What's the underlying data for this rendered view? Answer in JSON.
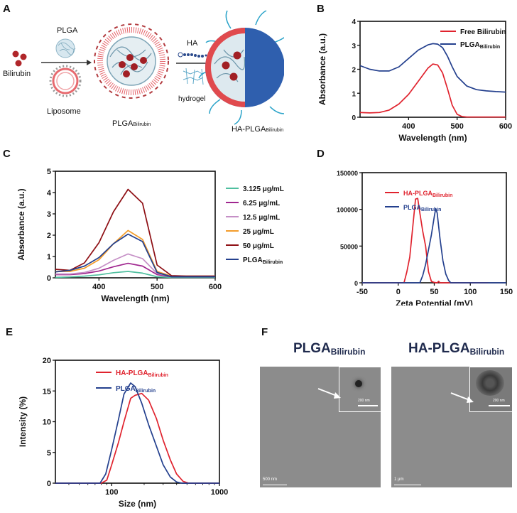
{
  "panels": {
    "A": {
      "letter": "A",
      "bilirubin_label": "Bilirubin",
      "plga_label": "PLGA",
      "liposome_label": "Liposome",
      "plga_bilirubin_label": "PLGA",
      "plga_bilirubin_sub": "Bilirubin",
      "ha_label": "HA",
      "hydrogel_label": "hydrogel",
      "ha_plga_label": "HA-PLGA",
      "ha_plga_sub": "Bilirubin"
    },
    "B": {
      "letter": "B"
    },
    "C": {
      "letter": "C"
    },
    "D": {
      "letter": "D"
    },
    "E": {
      "letter": "E"
    },
    "F": {
      "letter": "F",
      "left_title": "PLGA",
      "left_sub": "Bilirubin",
      "right_title": "HA-PLGA",
      "right_sub": "Bilirubin",
      "left_scale": "500 nm",
      "right_scale": "1 μm",
      "inset_scale": "200 nm"
    }
  },
  "chart_data": [
    {
      "id": "B",
      "type": "line",
      "xlabel": "Wavelength (nm)",
      "ylabel": "Absorbance (a.u.)",
      "xlim": [
        300,
        600
      ],
      "ylim": [
        0,
        4
      ],
      "xticks": [
        400,
        500,
        600
      ],
      "yticks": [
        0,
        1,
        2,
        3,
        4
      ],
      "legend_position": "top-right",
      "series": [
        {
          "name": "Free Bilirubin",
          "name_sub": "",
          "color": "#e0232e",
          "x": [
            300,
            320,
            340,
            360,
            380,
            400,
            420,
            440,
            450,
            460,
            470,
            480,
            490,
            500,
            510,
            520,
            540,
            560,
            580,
            600
          ],
          "y": [
            0.2,
            0.18,
            0.2,
            0.3,
            0.55,
            0.95,
            1.5,
            2.05,
            2.22,
            2.18,
            1.85,
            1.2,
            0.5,
            0.12,
            0.03,
            0.01,
            0.01,
            0.01,
            0.01,
            0.01
          ]
        },
        {
          "name": "PLGA",
          "name_sub": "Bilirubin",
          "color": "#24408e",
          "x": [
            300,
            320,
            340,
            360,
            380,
            400,
            420,
            440,
            450,
            460,
            470,
            480,
            490,
            500,
            520,
            540,
            560,
            580,
            600
          ],
          "y": [
            2.15,
            2.0,
            1.93,
            1.93,
            2.1,
            2.45,
            2.8,
            3.02,
            3.07,
            3.05,
            2.9,
            2.55,
            2.1,
            1.7,
            1.3,
            1.15,
            1.1,
            1.07,
            1.05
          ]
        }
      ]
    },
    {
      "id": "C",
      "type": "line",
      "xlabel": "Wavelength (nm)",
      "ylabel": "Absorbance (a.u.)",
      "xlim": [
        325,
        600
      ],
      "ylim": [
        0,
        5
      ],
      "xticks": [
        400,
        500,
        600
      ],
      "yticks": [
        0,
        1,
        2,
        3,
        4,
        5
      ],
      "legend_position": "right-outside",
      "series": [
        {
          "name": "3.125 μg/mL",
          "name_sub": "",
          "color": "#4fbf9f",
          "x": [
            325,
            350,
            375,
            400,
            425,
            450,
            475,
            500,
            525,
            550,
            600
          ],
          "y": [
            0.02,
            0.04,
            0.08,
            0.14,
            0.24,
            0.3,
            0.22,
            0.05,
            0.02,
            0.02,
            0.02
          ]
        },
        {
          "name": "6.25 μg/mL",
          "name_sub": "",
          "color": "#a0268f",
          "x": [
            325,
            350,
            375,
            400,
            425,
            450,
            475,
            500,
            525,
            550,
            600
          ],
          "y": [
            0.15,
            0.15,
            0.2,
            0.32,
            0.52,
            0.68,
            0.55,
            0.15,
            0.05,
            0.05,
            0.05
          ]
        },
        {
          "name": "12.5 μg/mL",
          "name_sub": "",
          "color": "#c58fc6",
          "x": [
            325,
            350,
            375,
            400,
            425,
            450,
            475,
            500,
            525,
            550,
            600
          ],
          "y": [
            0.18,
            0.18,
            0.25,
            0.45,
            0.82,
            1.12,
            0.9,
            0.2,
            0.08,
            0.08,
            0.08
          ]
        },
        {
          "name": "25 μg/mL",
          "name_sub": "",
          "color": "#f39c2a",
          "x": [
            325,
            350,
            375,
            400,
            425,
            450,
            475,
            500,
            525,
            550,
            600
          ],
          "y": [
            0.3,
            0.3,
            0.45,
            0.85,
            1.6,
            2.22,
            1.8,
            0.3,
            0.08,
            0.08,
            0.08
          ]
        },
        {
          "name": "50 μg/mL",
          "name_sub": "",
          "color": "#8e0f14",
          "x": [
            325,
            350,
            375,
            400,
            425,
            450,
            475,
            500,
            525,
            550,
            600
          ],
          "y": [
            0.4,
            0.35,
            0.7,
            1.65,
            3.1,
            4.15,
            3.5,
            0.6,
            0.1,
            0.08,
            0.08
          ]
        },
        {
          "name": "PLGA",
          "name_sub": "Bilirubin",
          "color": "#24408e",
          "x": [
            325,
            350,
            375,
            400,
            425,
            450,
            475,
            500,
            525,
            550,
            600
          ],
          "y": [
            0.28,
            0.35,
            0.55,
            0.95,
            1.6,
            2.05,
            1.7,
            0.25,
            0.05,
            0.05,
            0.05
          ]
        }
      ]
    },
    {
      "id": "D",
      "type": "line",
      "xlabel": "Zeta Potential (mV)",
      "ylabel": "",
      "xlim": [
        -50,
        150
      ],
      "ylim": [
        0,
        150000
      ],
      "xticks": [
        -50,
        0,
        50,
        100,
        150
      ],
      "yticks": [
        0,
        50000,
        100000,
        150000
      ],
      "legend_position": "top-right",
      "series": [
        {
          "name": "HA-PLGA",
          "name_sub": "Bilirubin",
          "color": "#e0232e",
          "x": [
            -50,
            8,
            12,
            16,
            20,
            24,
            27,
            30,
            34,
            38,
            42,
            46,
            50,
            54,
            56,
            58,
            62,
            100,
            125
          ],
          "y": [
            0,
            0,
            15000,
            35000,
            75000,
            114000,
            115000,
            95000,
            70000,
            50000,
            15000,
            2000,
            500,
            0,
            2000,
            0,
            0,
            0,
            0
          ]
        },
        {
          "name": "PLGA",
          "name_sub": "Bilirubin",
          "color": "#24408e",
          "x": [
            -50,
            30,
            34,
            38,
            42,
            46,
            50,
            52,
            54,
            58,
            62,
            66,
            70,
            73,
            150
          ],
          "y": [
            0,
            0,
            10000,
            25000,
            45000,
            65000,
            90000,
            101000,
            95000,
            60000,
            30000,
            12000,
            3000,
            0,
            0
          ]
        }
      ]
    },
    {
      "id": "E",
      "type": "line",
      "xlabel": "Size (nm)",
      "ylabel": "Intensity (%)",
      "xscale": "log",
      "xlim": [
        30,
        1000
      ],
      "ylim": [
        0,
        20
      ],
      "xticks": [
        100,
        1000
      ],
      "yticks": [
        0,
        5,
        10,
        15,
        20
      ],
      "legend_position": "top-right",
      "series": [
        {
          "name": "HA-PLGA",
          "name_sub": "Bilirubin",
          "color": "#e0232e",
          "x": [
            30,
            80,
            90,
            100,
            115,
            130,
            150,
            165,
            190,
            220,
            260,
            300,
            350,
            400,
            460,
            520,
            1000
          ],
          "y": [
            0,
            0,
            0.5,
            3.0,
            6.5,
            10.0,
            13.8,
            14.3,
            14.6,
            13.5,
            10.5,
            7.0,
            3.8,
            1.5,
            0.3,
            0,
            0
          ]
        },
        {
          "name": "PLGA",
          "name_sub": "Bilirubin",
          "color": "#24408e",
          "x": [
            30,
            78,
            88,
            100,
            115,
            130,
            150,
            165,
            190,
            220,
            260,
            300,
            350,
            400,
            450,
            1000
          ],
          "y": [
            0,
            0,
            1.5,
            5.5,
            10.2,
            14.5,
            16.3,
            15.7,
            13.0,
            9.5,
            6.0,
            3.0,
            1.0,
            0.2,
            0,
            0
          ]
        }
      ]
    }
  ]
}
